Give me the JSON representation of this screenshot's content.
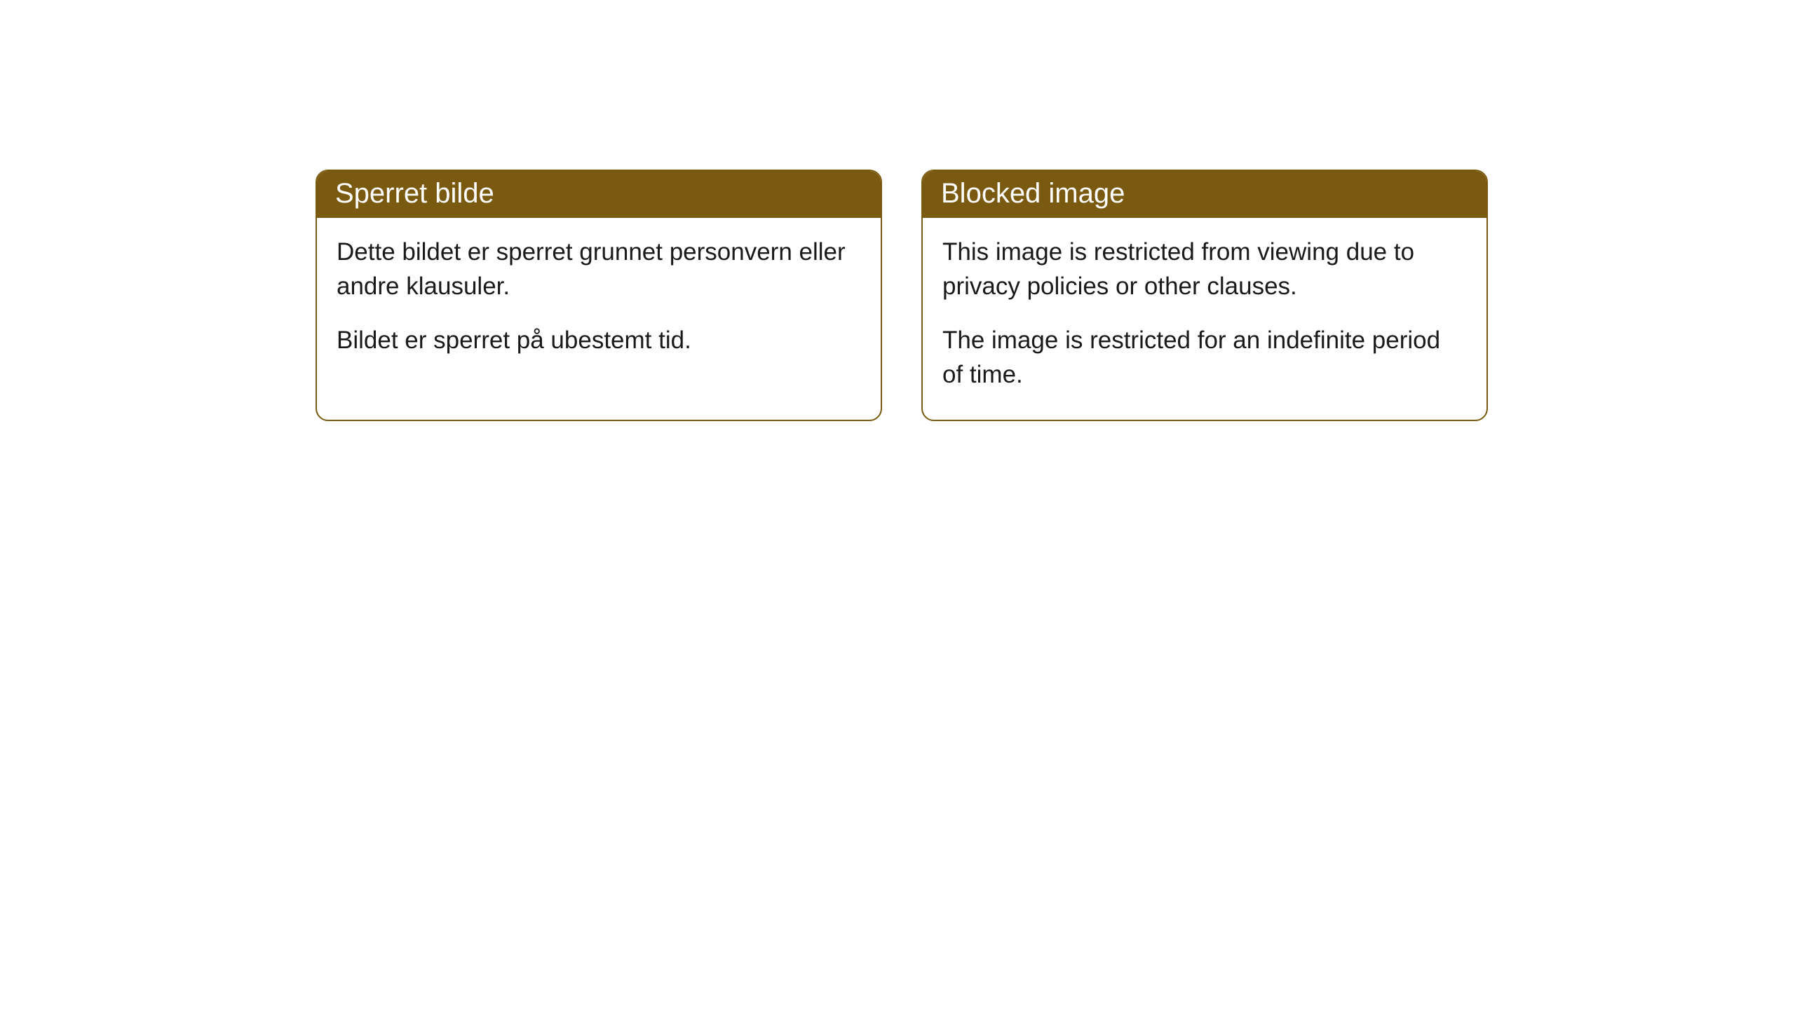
{
  "cards": [
    {
      "title": "Sperret bilde",
      "paragraph1": "Dette bildet er sperret grunnet personvern eller andre klausuler.",
      "paragraph2": "Bildet er sperret på ubestemt tid."
    },
    {
      "title": "Blocked image",
      "paragraph1": "This image is restricted from viewing due to privacy policies or other clauses.",
      "paragraph2": "The image is restricted for an indefinite period of time."
    }
  ],
  "style": {
    "header_bg": "#7a5a10",
    "header_text_color": "#ffffff",
    "border_color": "#7a5a10",
    "body_text_color": "#1a1a1a",
    "background_color": "#ffffff",
    "border_radius": 18,
    "title_fontsize": 40,
    "body_fontsize": 35
  }
}
